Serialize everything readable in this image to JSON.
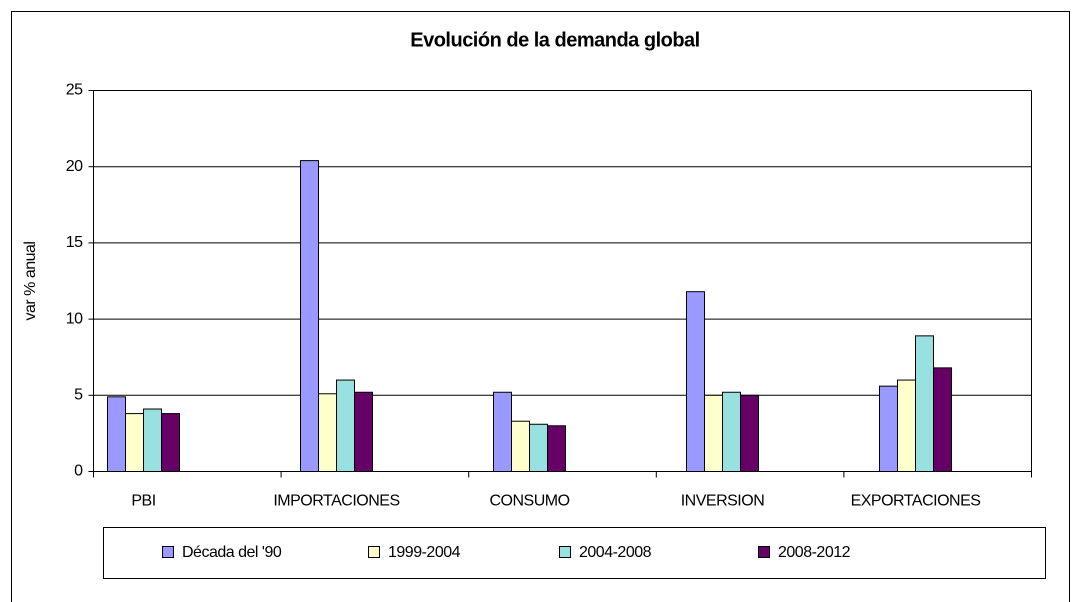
{
  "chart_data": {
    "type": "bar",
    "title": "Evolución de la demanda global",
    "y_label": "var % anual",
    "categories": [
      "PBI",
      "IMPORTACIONES",
      "CONSUMO",
      "INVERSION",
      "EXPORTACIONES"
    ],
    "series": [
      {
        "name": "Década del '90",
        "color": "#9999ff",
        "values": [
          4.9,
          20.4,
          5.2,
          11.8,
          5.6
        ]
      },
      {
        "name": "1999-2004",
        "color": "#ffffcc",
        "values": [
          3.8,
          5.1,
          3.3,
          5.0,
          6.0
        ]
      },
      {
        "name": "2004-2008",
        "color": "#99e0e0",
        "values": [
          4.1,
          6.0,
          3.1,
          5.2,
          8.9
        ]
      },
      {
        "name": "2008-2012",
        "color": "#660066",
        "values": [
          3.8,
          5.2,
          3.0,
          5.0,
          6.8
        ]
      }
    ],
    "ylim": [
      0,
      25
    ],
    "yticks": [
      0,
      5,
      10,
      15,
      20,
      25
    ],
    "grid": true,
    "legend": "bottom"
  }
}
